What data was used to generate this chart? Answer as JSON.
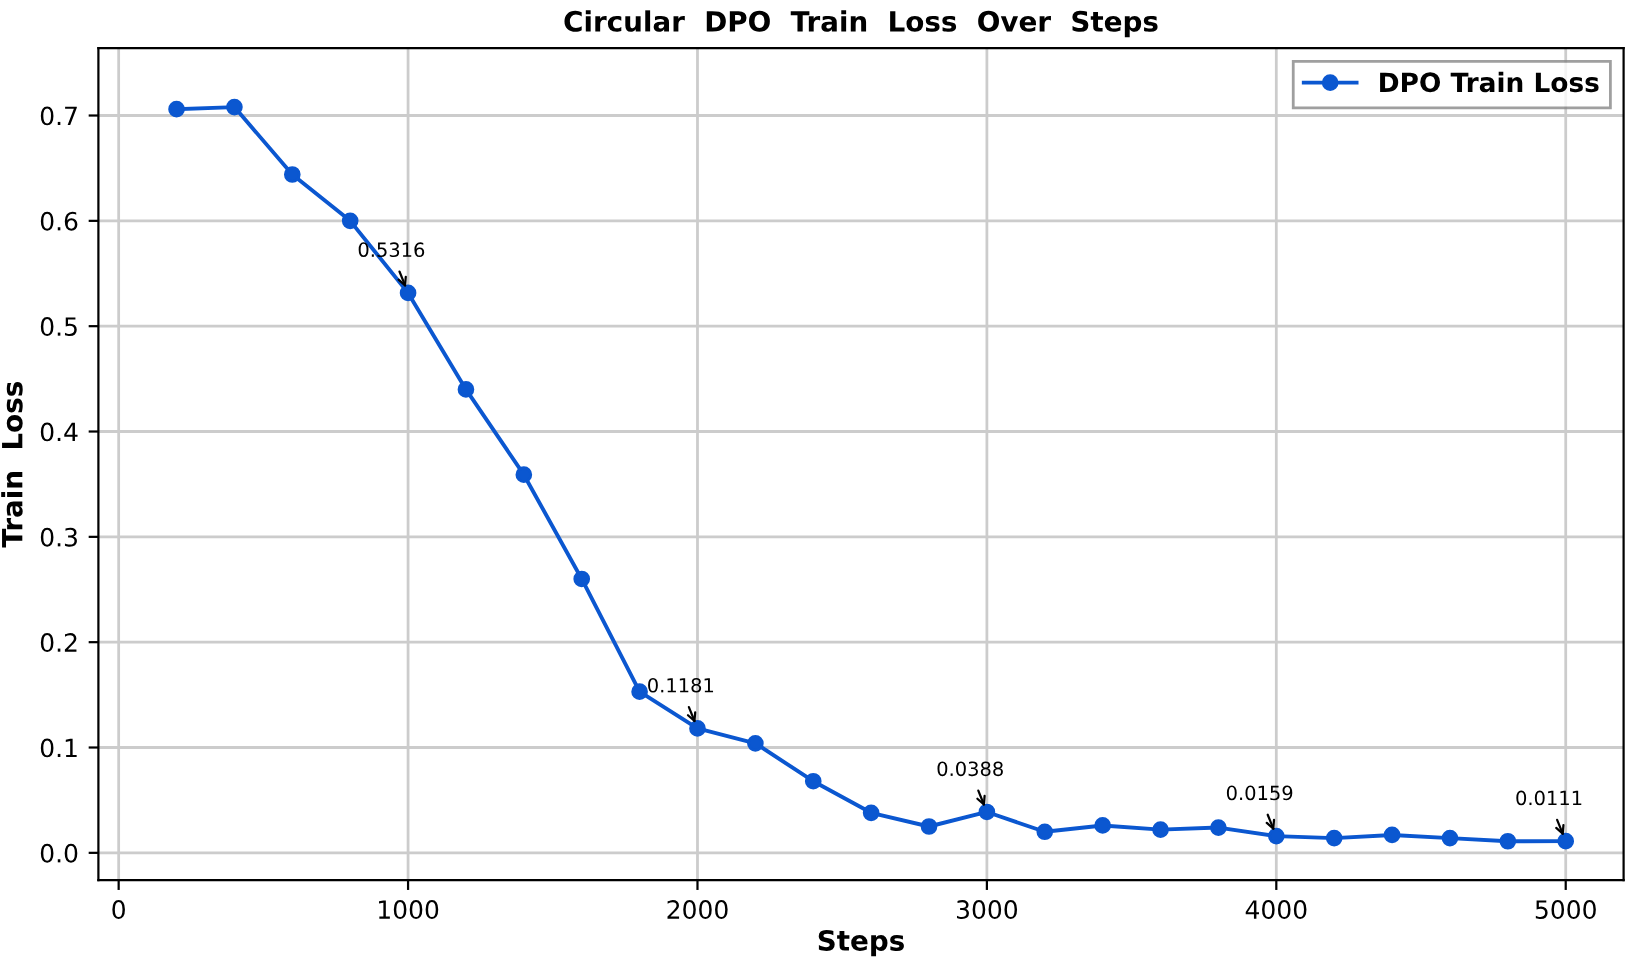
{
  "chart_data": {
    "type": "line",
    "title": "Circular  DPO  Train  Loss  Over  Steps",
    "xlabel": "Steps",
    "ylabel": "Train  Loss",
    "x": [
      200,
      400,
      600,
      800,
      1000,
      1200,
      1400,
      1600,
      1800,
      2000,
      2200,
      2400,
      2600,
      2800,
      3000,
      3200,
      3400,
      3600,
      3800,
      4000,
      4200,
      4400,
      4600,
      4800,
      5000
    ],
    "series": [
      {
        "name": "DPO Train Loss",
        "color": "#0b57d0",
        "values": [
          0.706,
          0.708,
          0.644,
          0.6,
          0.5316,
          0.44,
          0.359,
          0.26,
          0.153,
          0.1181,
          0.104,
          0.068,
          0.038,
          0.025,
          0.0388,
          0.02,
          0.026,
          0.022,
          0.024,
          0.0159,
          0.014,
          0.017,
          0.014,
          0.011,
          0.0111
        ]
      }
    ],
    "annotations": [
      {
        "text": "0.5316",
        "x": 1000,
        "y": 0.5316
      },
      {
        "text": "0.1181",
        "x": 2000,
        "y": 0.1181
      },
      {
        "text": "0.0388",
        "x": 3000,
        "y": 0.0388
      },
      {
        "text": "0.0159",
        "x": 4000,
        "y": 0.0159
      },
      {
        "text": "0.0111",
        "x": 5000,
        "y": 0.0111
      }
    ],
    "xlim": [
      -70,
      5200
    ],
    "ylim": [
      -0.026,
      0.764
    ],
    "xticks": [
      0,
      1000,
      2000,
      3000,
      4000,
      5000
    ],
    "yticks": [
      {
        "value": 0.0,
        "label": "0.0"
      },
      0.1,
      0.2,
      0.3,
      0.4,
      0.5,
      0.6,
      0.7
    ],
    "grid": true,
    "legend": "top right",
    "marker": "circle",
    "line_style": "solid"
  }
}
